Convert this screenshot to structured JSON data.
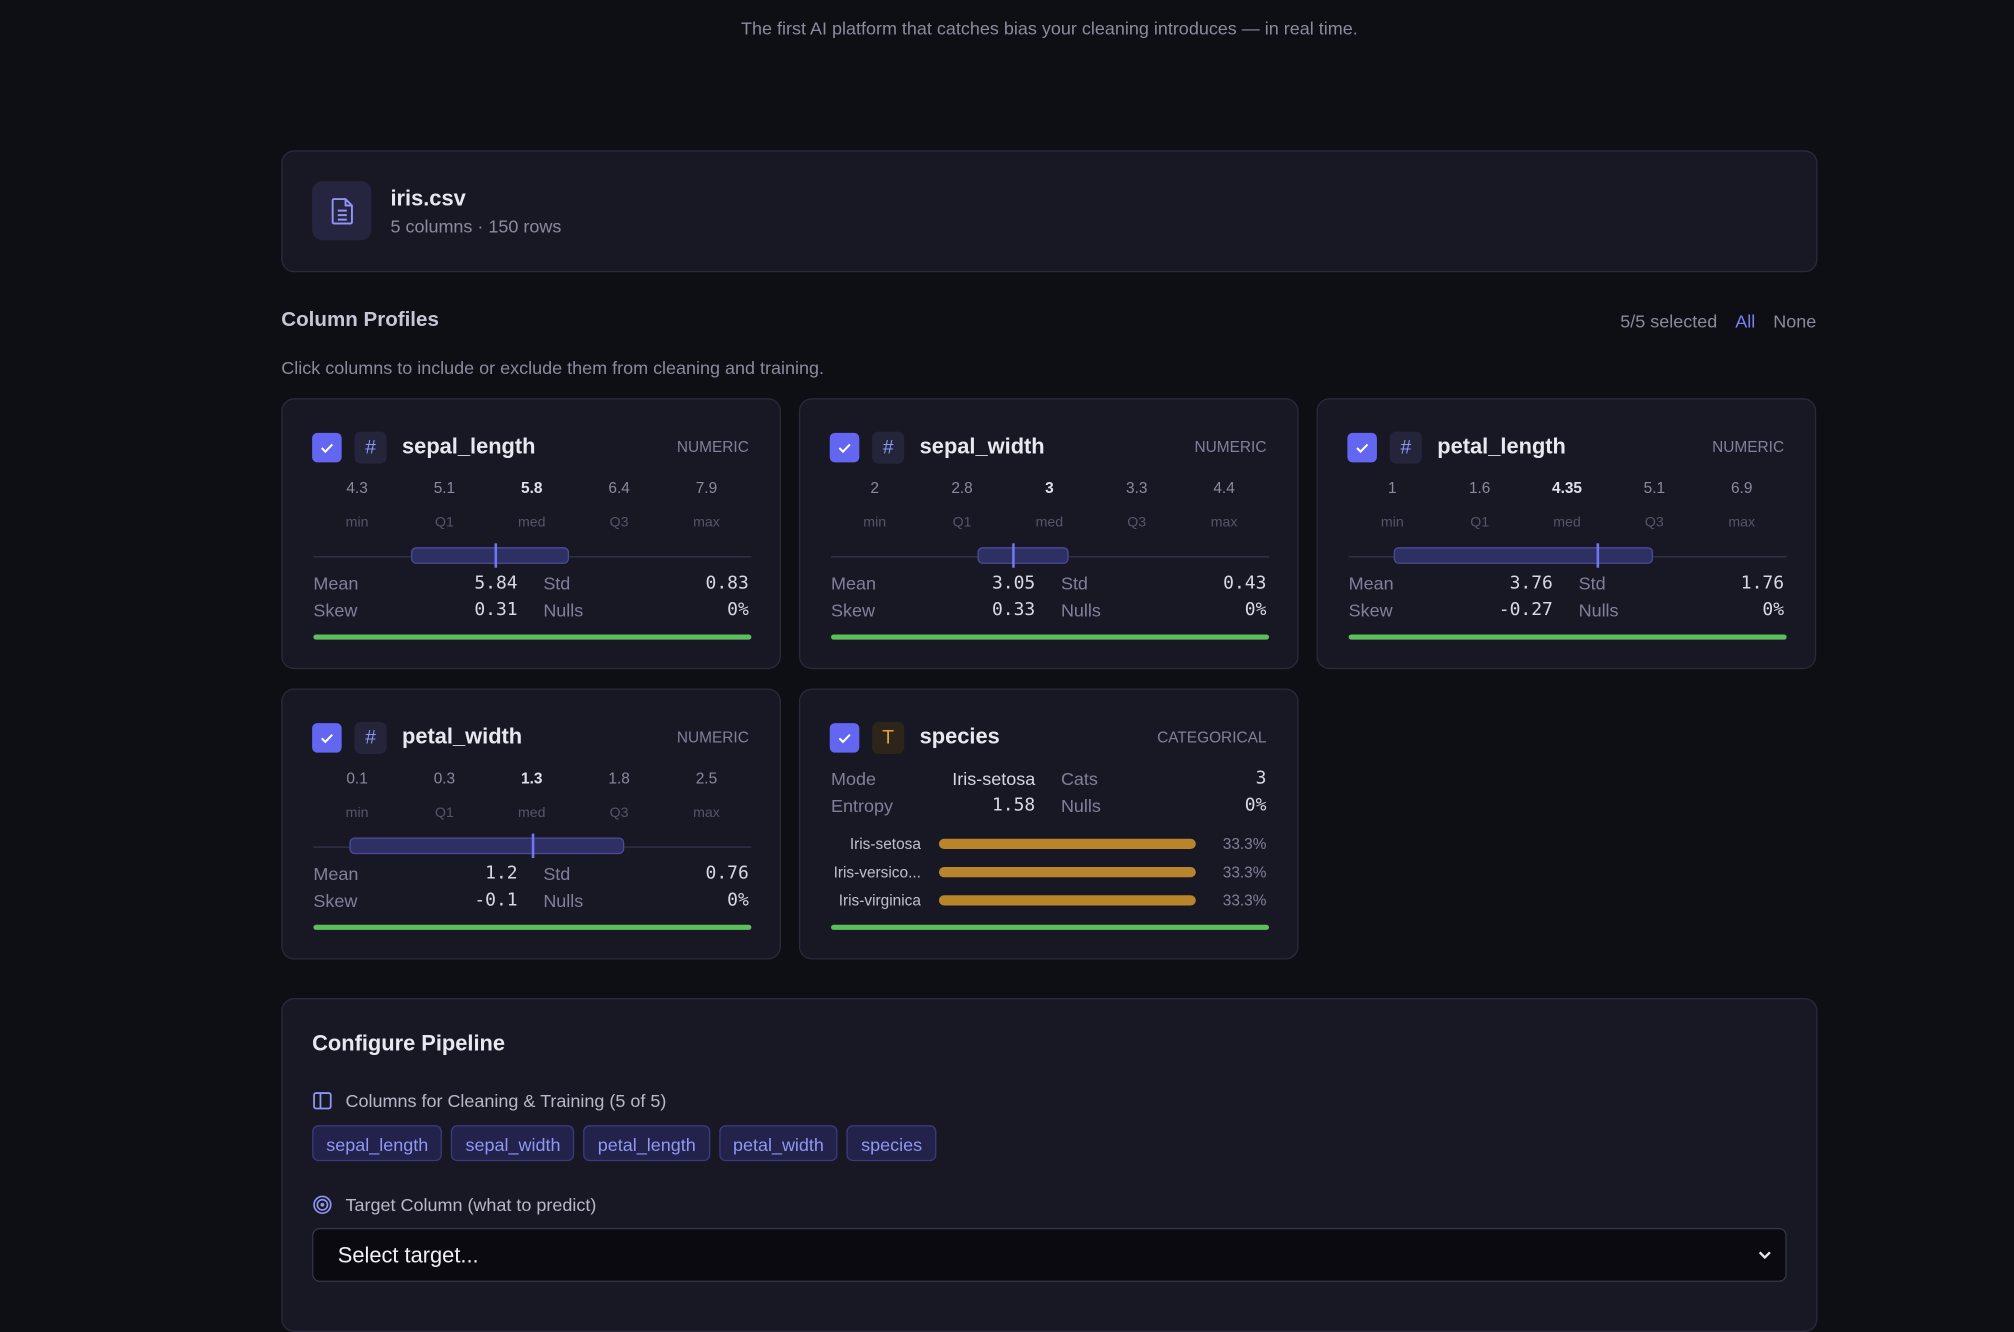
{
  "header": {
    "subtitle": "The first AI platform that catches bias your cleaning introduces — in real time."
  },
  "file": {
    "name": "iris.csv",
    "meta": "5 columns · 150 rows"
  },
  "profiles": {
    "title": "Column Profiles",
    "selected": "5/5 selected",
    "all": "All",
    "none": "None",
    "hint": "Click columns to include or exclude them from cleaning and training.",
    "labels": {
      "min": "min",
      "q1": "Q1",
      "med": "med",
      "q3": "Q3",
      "max": "max",
      "mean": "Mean",
      "std": "Std",
      "skew": "Skew",
      "nulls": "Nulls",
      "mode": "Mode",
      "cats": "Cats",
      "entropy": "Entropy"
    },
    "columns": [
      {
        "name": "sepal_length",
        "icon": "#",
        "kind": "NUMERIC",
        "stats": [
          4.3,
          5.1,
          5.8,
          6.4,
          7.9
        ],
        "mean": 5.84,
        "std": 0.83,
        "skew": 0.31,
        "nulls": "0%"
      },
      {
        "name": "sepal_width",
        "icon": "#",
        "kind": "NUMERIC",
        "stats": [
          2,
          2.8,
          3,
          3.3,
          4.4
        ],
        "mean": 3.05,
        "std": 0.43,
        "skew": 0.33,
        "nulls": "0%"
      },
      {
        "name": "petal_length",
        "icon": "#",
        "kind": "NUMERIC",
        "stats": [
          1,
          1.6,
          4.35,
          5.1,
          6.9
        ],
        "mean": 3.76,
        "std": 1.76,
        "skew": -0.27,
        "nulls": "0%"
      },
      {
        "name": "petal_width",
        "icon": "#",
        "kind": "NUMERIC",
        "stats": [
          0.1,
          0.3,
          1.3,
          1.8,
          2.5
        ],
        "mean": 1.2,
        "std": 0.76,
        "skew": -0.1,
        "nulls": "0%"
      },
      {
        "name": "species",
        "icon": "T",
        "kind": "CATEGORICAL",
        "mode": "Iris-setosa",
        "cats": 3,
        "entropy": 1.58,
        "nulls": "0%",
        "categories": [
          "Iris-setosa",
          "Iris-versico...",
          "Iris-virginica"
        ],
        "values": [
          33.3,
          33.3,
          33.3
        ],
        "value_labels": [
          "33.3%",
          "33.3%",
          "33.3%"
        ]
      }
    ]
  },
  "pipeline": {
    "title": "Configure Pipeline",
    "columns_label": "Columns for Cleaning & Training (5 of 5)",
    "chips": [
      "sepal_length",
      "sepal_width",
      "petal_length",
      "petal_width",
      "species"
    ],
    "target_label": "Target Column (what to predict)",
    "target_placeholder": "Select target..."
  }
}
